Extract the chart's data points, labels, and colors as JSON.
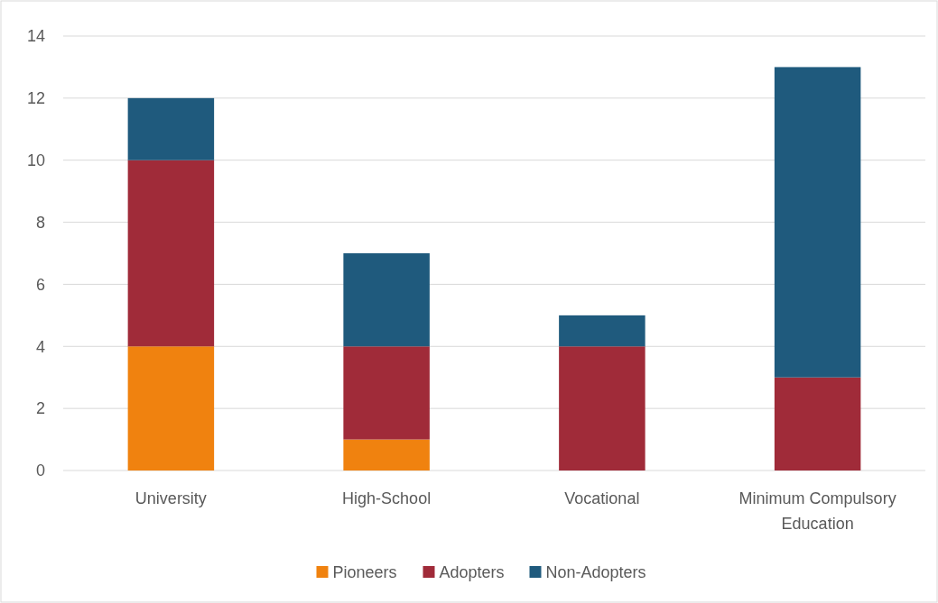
{
  "chart_data": {
    "type": "bar",
    "stacked": true,
    "categories": [
      "University",
      "High-School",
      "Vocational",
      "Minimum Compulsory Education"
    ],
    "series": [
      {
        "name": "Pioneers",
        "color": "#f0820f",
        "values": [
          4,
          1,
          0,
          0
        ]
      },
      {
        "name": "Adopters",
        "color": "#a02b39",
        "values": [
          6,
          3,
          4,
          3
        ]
      },
      {
        "name": "Non-Adopters",
        "color": "#1f5a7d",
        "values": [
          2,
          3,
          1,
          10
        ]
      }
    ],
    "ylim": [
      0,
      14
    ],
    "yticks": [
      0,
      2,
      4,
      6,
      8,
      10,
      12,
      14
    ],
    "grid": "y",
    "legend": "bottom"
  }
}
